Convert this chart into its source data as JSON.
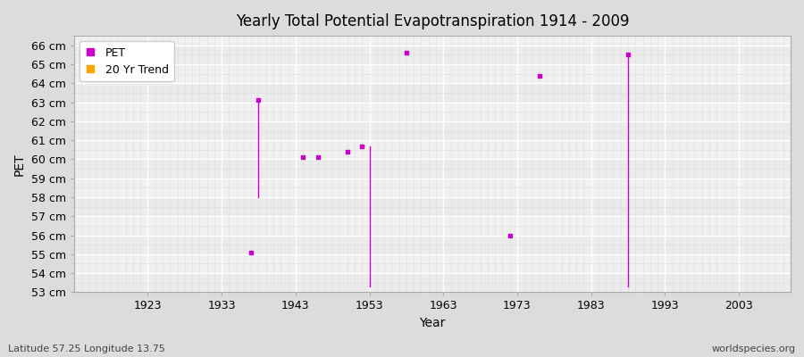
{
  "title": "Yearly Total Potential Evapotranspiration 1914 - 2009",
  "xlabel": "Year",
  "ylabel": "PET",
  "footnote_left": "Latitude 57.25 Longitude 13.75",
  "footnote_right": "worldspecies.org",
  "ylim": [
    53,
    66.5
  ],
  "ytick_labels": [
    "53 cm",
    "54 cm",
    "55 cm",
    "56 cm",
    "57 cm",
    "58 cm",
    "59 cm",
    "60 cm",
    "61 cm",
    "62 cm",
    "63 cm",
    "64 cm",
    "65 cm",
    "66 cm"
  ],
  "ytick_values": [
    53,
    54,
    55,
    56,
    57,
    58,
    59,
    60,
    61,
    62,
    63,
    64,
    65,
    66
  ],
  "xlim": [
    1913,
    2010
  ],
  "xtick_values": [
    1923,
    1933,
    1943,
    1953,
    1963,
    1973,
    1983,
    1993,
    2003
  ],
  "background_color": "#dcdcdc",
  "plot_background_color": "#f0f0f0",
  "grid_color_major": "#ffffff",
  "grid_color_minor": "#e0e0e0",
  "pet_color": "#cc00cc",
  "trend_color": "#ffa500",
  "pet_points": [
    [
      1937,
      55.1
    ],
    [
      1938,
      63.1
    ],
    [
      1944,
      60.1
    ],
    [
      1946,
      60.1
    ],
    [
      1950,
      60.4
    ],
    [
      1952,
      60.7
    ],
    [
      1958,
      65.6
    ],
    [
      1972,
      56.0
    ],
    [
      1976,
      64.4
    ],
    [
      1988,
      65.5
    ]
  ],
  "trend_lines": [
    [
      1938,
      63.1,
      1938,
      58.0
    ],
    [
      1953,
      60.7,
      1953,
      53.3
    ],
    [
      1988,
      65.5,
      1988,
      53.3
    ]
  ],
  "legend_entries": [
    "PET",
    "20 Yr Trend"
  ]
}
